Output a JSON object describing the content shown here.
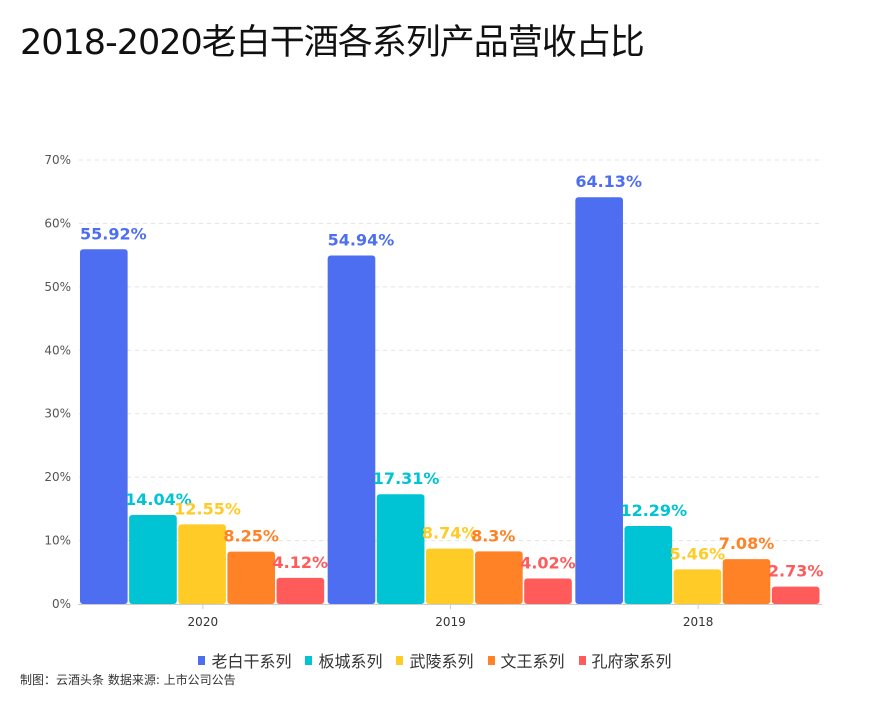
{
  "title": "2018-2020老白干酒各系列产品营收占比",
  "source": "制图：云酒头条 数据来源: 上市公司公告",
  "chart_data": {
    "type": "bar",
    "categories": [
      "2020",
      "2019",
      "2018"
    ],
    "ylim": [
      0,
      70
    ],
    "yticks": [
      "0%",
      "10%",
      "20%",
      "30%",
      "40%",
      "50%",
      "60%",
      "70%"
    ],
    "grid": true,
    "legend_position": "bottom",
    "series": [
      {
        "name": "老白干系列",
        "color": "#4E6EF2",
        "values": [
          55.92,
          54.94,
          64.13
        ],
        "labels": [
          "55.92%",
          "54.94%",
          "64.13%"
        ]
      },
      {
        "name": "板城系列",
        "color": "#00C3D4",
        "values": [
          14.04,
          17.31,
          12.29
        ],
        "labels": [
          "14.04%",
          "17.31%",
          "12.29%"
        ]
      },
      {
        "name": "武陵系列",
        "color": "#FFCB26",
        "values": [
          12.55,
          8.74,
          5.46
        ],
        "labels": [
          "12.55%",
          "8.74%",
          "5.46%"
        ]
      },
      {
        "name": "文王系列",
        "color": "#FF8326",
        "values": [
          8.25,
          8.3,
          7.08
        ],
        "labels": [
          "8.25%",
          "8.3%",
          "7.08%"
        ]
      },
      {
        "name": "孔府家系列",
        "color": "#FF5B5B",
        "values": [
          4.12,
          4.02,
          2.73
        ],
        "labels": [
          "4.12%",
          "4.02%",
          "2.73%"
        ]
      }
    ]
  }
}
